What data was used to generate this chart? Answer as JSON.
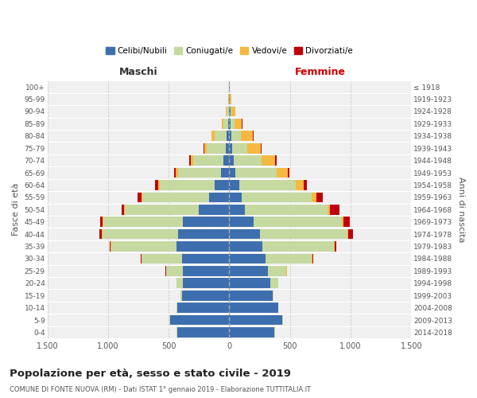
{
  "age_groups": [
    "0-4",
    "5-9",
    "10-14",
    "15-19",
    "20-24",
    "25-29",
    "30-34",
    "35-39",
    "40-44",
    "45-49",
    "50-54",
    "55-59",
    "60-64",
    "65-69",
    "70-74",
    "75-79",
    "80-84",
    "85-89",
    "90-94",
    "95-99",
    "100+"
  ],
  "birth_years": [
    "2014-2018",
    "2009-2013",
    "2004-2008",
    "1999-2003",
    "1994-1998",
    "1989-1993",
    "1984-1988",
    "1979-1983",
    "1974-1978",
    "1969-1973",
    "1964-1968",
    "1959-1963",
    "1954-1958",
    "1949-1953",
    "1944-1948",
    "1939-1943",
    "1934-1938",
    "1929-1933",
    "1924-1928",
    "1919-1923",
    "≤ 1918"
  ],
  "males": {
    "celibi": [
      430,
      490,
      430,
      390,
      385,
      385,
      390,
      435,
      420,
      385,
      255,
      165,
      120,
      70,
      50,
      30,
      20,
      10,
      5,
      2,
      2
    ],
    "coniugati": [
      5,
      5,
      5,
      15,
      50,
      135,
      335,
      540,
      625,
      655,
      605,
      555,
      455,
      355,
      250,
      155,
      100,
      40,
      15,
      3,
      0
    ],
    "vedovi": [
      0,
      0,
      0,
      0,
      1,
      2,
      2,
      3,
      5,
      5,
      5,
      5,
      10,
      15,
      20,
      20,
      25,
      15,
      10,
      2,
      0
    ],
    "divorziati": [
      0,
      0,
      0,
      0,
      2,
      3,
      5,
      10,
      20,
      20,
      20,
      30,
      25,
      15,
      10,
      5,
      2,
      0,
      0,
      0,
      0
    ]
  },
  "females": {
    "celibi": [
      370,
      435,
      400,
      355,
      340,
      320,
      300,
      270,
      250,
      200,
      130,
      100,
      80,
      50,
      35,
      20,
      15,
      12,
      8,
      3,
      2
    ],
    "coniugati": [
      5,
      5,
      5,
      10,
      60,
      150,
      380,
      590,
      720,
      730,
      680,
      580,
      470,
      340,
      230,
      130,
      80,
      30,
      10,
      2,
      0
    ],
    "vedovi": [
      0,
      0,
      0,
      0,
      1,
      2,
      3,
      5,
      8,
      10,
      20,
      40,
      60,
      90,
      110,
      110,
      100,
      60,
      30,
      10,
      2
    ],
    "divorziati": [
      0,
      0,
      0,
      0,
      3,
      5,
      10,
      15,
      40,
      50,
      80,
      50,
      30,
      15,
      12,
      8,
      5,
      3,
      2,
      0,
      0
    ]
  },
  "colors": {
    "celibi": "#3d6faf",
    "coniugati": "#c5d9a0",
    "vedovi": "#f5b942",
    "divorziati": "#c0000a"
  },
  "legend_labels": [
    "Celibi/Nubili",
    "Coniugati/e",
    "Vedovi/e",
    "Divorziati/e"
  ],
  "title": "Popolazione per età, sesso e stato civile - 2019",
  "subtitle": "COMUNE DI FONTE NUOVA (RM) - Dati ISTAT 1° gennaio 2019 - Elaborazione TUTTITALIA.IT",
  "xlabel_left": "Maschi",
  "xlabel_right": "Femmine",
  "ylabel_left": "Fasce di età",
  "ylabel_right": "Anni di nascita",
  "xlim": 1500,
  "bg_color": "#f0f0f0",
  "grid_color": "#cccccc"
}
